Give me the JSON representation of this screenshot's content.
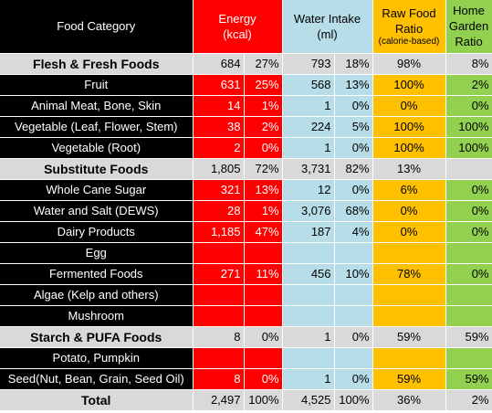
{
  "header": {
    "category": "Food Category",
    "energy_line1": "Energy",
    "energy_line2": "(kcal)",
    "water_line1": "Water Intake",
    "water_line2": "(ml)",
    "raw_line1": "Raw Food",
    "raw_line2": "Ratio",
    "raw_line3": "(calorie-based)",
    "garden_line1": "Home",
    "garden_line2": "Garden",
    "garden_line3": "Ratio"
  },
  "rows": [
    {
      "type": "sum",
      "cat": "Flesh & Fresh Foods",
      "e": "684",
      "ep": "27%",
      "w": "793",
      "wp": "18%",
      "r": "98%",
      "g": "8%"
    },
    {
      "type": "item",
      "cat": "Fruit",
      "e": "631",
      "ep": "25%",
      "w": "568",
      "wp": "13%",
      "r": "100%",
      "g": "2%"
    },
    {
      "type": "item",
      "cat": "Animal Meat, Bone, Skin",
      "e": "14",
      "ep": "1%",
      "w": "1",
      "wp": "0%",
      "r": "0%",
      "g": "0%"
    },
    {
      "type": "item",
      "cat": "Vegetable (Leaf, Flower, Stem)",
      "e": "38",
      "ep": "2%",
      "w": "224",
      "wp": "5%",
      "r": "100%",
      "g": "100%"
    },
    {
      "type": "item",
      "cat": "Vegetable (Root)",
      "e": "2",
      "ep": "0%",
      "w": "1",
      "wp": "0%",
      "r": "100%",
      "g": "100%"
    },
    {
      "type": "sum",
      "cat": "Substitute Foods",
      "e": "1,805",
      "ep": "72%",
      "w": "3,731",
      "wp": "82%",
      "r": "13%",
      "g": ""
    },
    {
      "type": "item",
      "cat": "Whole Cane Sugar",
      "e": "321",
      "ep": "13%",
      "w": "12",
      "wp": "0%",
      "r": "6%",
      "g": "0%"
    },
    {
      "type": "item",
      "cat": "Water and Salt (DEWS)",
      "e": "28",
      "ep": "1%",
      "w": "3,076",
      "wp": "68%",
      "r": "0%",
      "g": "0%"
    },
    {
      "type": "item",
      "cat": "Dairy Products",
      "e": "1,185",
      "ep": "47%",
      "w": "187",
      "wp": "4%",
      "r": "0%",
      "g": "0%"
    },
    {
      "type": "item",
      "cat": "Egg",
      "e": "",
      "ep": "",
      "w": "",
      "wp": "",
      "r": "",
      "g": ""
    },
    {
      "type": "item",
      "cat": "Fermented Foods",
      "e": "271",
      "ep": "11%",
      "w": "456",
      "wp": "10%",
      "r": "78%",
      "g": "0%"
    },
    {
      "type": "item",
      "cat": "Algae (Kelp and others)",
      "e": "",
      "ep": "",
      "w": "",
      "wp": "",
      "r": "",
      "g": ""
    },
    {
      "type": "item",
      "cat": "Mushroom",
      "e": "",
      "ep": "",
      "w": "",
      "wp": "",
      "r": "",
      "g": ""
    },
    {
      "type": "sum",
      "cat": "Starch & PUFA Foods",
      "e": "8",
      "ep": "0%",
      "w": "1",
      "wp": "0%",
      "r": "59%",
      "g": "59%"
    },
    {
      "type": "item",
      "cat": "Potato, Pumpkin",
      "e": "",
      "ep": "",
      "w": "",
      "wp": "",
      "r": "",
      "g": ""
    },
    {
      "type": "item",
      "cat": "Seed(Nut, Bean, Grain, Seed Oil)",
      "e": "8",
      "ep": "0%",
      "w": "1",
      "wp": "0%",
      "r": "59%",
      "g": "59%"
    },
    {
      "type": "total",
      "cat": "Total",
      "e": "2,497",
      "ep": "100%",
      "w": "4,525",
      "wp": "100%",
      "r": "36%",
      "g": "2%"
    }
  ],
  "colors": {
    "red": "#ff0000",
    "blue": "#b7dde8",
    "gold": "#ffc000",
    "green": "#92d050",
    "grey": "#d9d9d9",
    "black": "#000000"
  }
}
